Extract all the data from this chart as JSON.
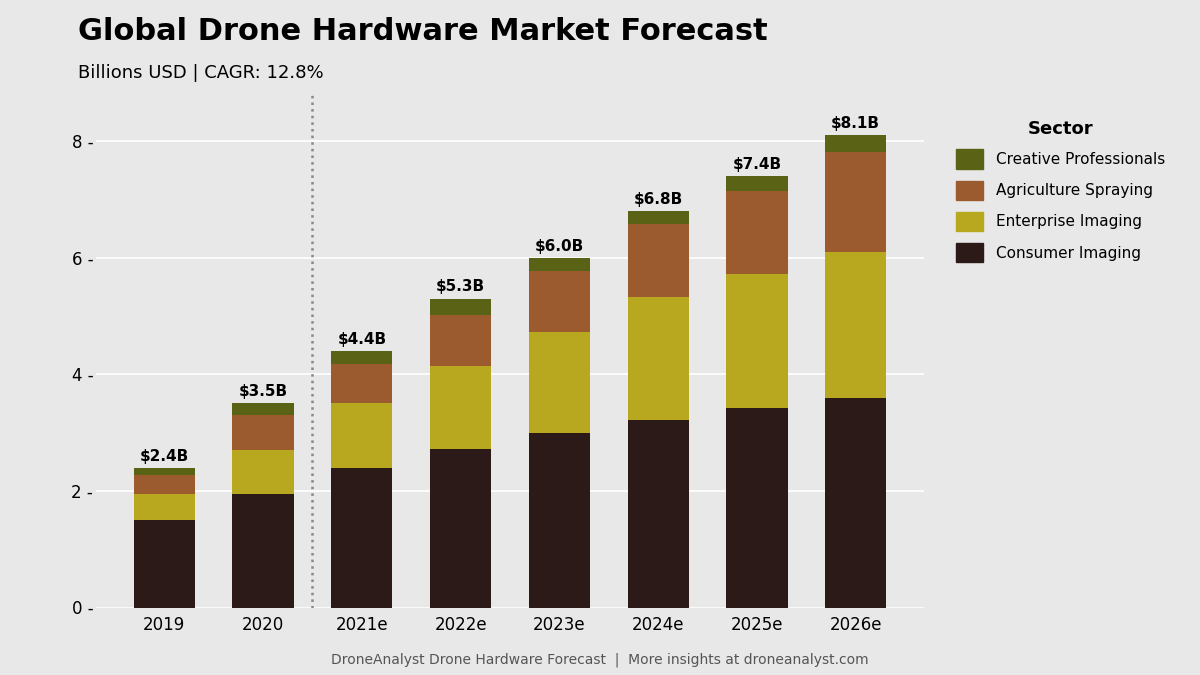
{
  "title": "Global Drone Hardware Market Forecast",
  "subtitle": "Billions USD | CAGR: 12.8%",
  "footer": "DroneAnalyst Drone Hardware Forecast  |  More insights at droneanalyst.com",
  "categories": [
    "2019",
    "2020",
    "2021e",
    "2022e",
    "2023e",
    "2024e",
    "2025e",
    "2026e"
  ],
  "totals": [
    "$2.4B",
    "$3.5B",
    "$4.4B",
    "$5.3B",
    "$6.0B",
    "$6.8B",
    "$7.4B",
    "$8.1B"
  ],
  "consumer_imaging": [
    1.5,
    1.95,
    2.4,
    2.72,
    3.0,
    3.22,
    3.42,
    3.6
  ],
  "enterprise_imaging": [
    0.45,
    0.75,
    1.1,
    1.42,
    1.72,
    2.1,
    2.3,
    2.5
  ],
  "agriculture_spraying": [
    0.32,
    0.6,
    0.68,
    0.88,
    1.05,
    1.25,
    1.42,
    1.72
  ],
  "creative_professionals": [
    0.13,
    0.2,
    0.22,
    0.28,
    0.23,
    0.23,
    0.26,
    0.28
  ],
  "color_consumer": "#2b1a17",
  "color_enterprise": "#b8a820",
  "color_agriculture": "#9b5b2e",
  "color_creative": "#5a6315",
  "bg_color": "#e8e8e8",
  "grid_color": "#ffffff",
  "dotted_line_after_idx": 1,
  "ylim": [
    0,
    8.8
  ],
  "yticks": [
    0,
    2,
    4,
    6,
    8
  ],
  "title_fontsize": 22,
  "subtitle_fontsize": 13,
  "tick_fontsize": 12,
  "label_fontsize": 11,
  "footer_fontsize": 10,
  "legend_title_fontsize": 13,
  "legend_fontsize": 11
}
